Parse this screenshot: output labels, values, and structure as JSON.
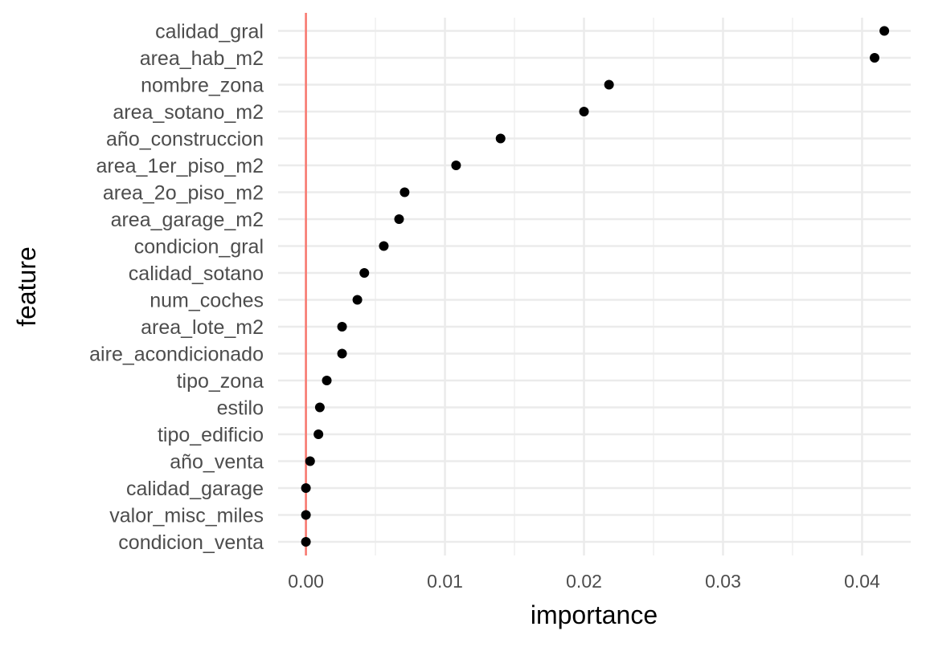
{
  "chart_data": {
    "type": "scatter",
    "xlabel": "importance",
    "ylabel": "feature",
    "xlim": [
      -0.002,
      0.0435
    ],
    "x_ticks": [
      0.0,
      0.01,
      0.02,
      0.03,
      0.04
    ],
    "x_tick_labels": [
      "0.00",
      "0.01",
      "0.02",
      "0.03",
      "0.04"
    ],
    "grid": true,
    "reference_line": {
      "x": 0.0,
      "color": "#f8766d"
    },
    "point_color": "#000000",
    "features": [
      "calidad_gral",
      "area_hab_m2",
      "nombre_zona",
      "area_sotano_m2",
      "año_construccion",
      "area_1er_piso_m2",
      "area_2o_piso_m2",
      "area_garage_m2",
      "condicion_gral",
      "calidad_sotano",
      "num_coches",
      "area_lote_m2",
      "aire_acondicionado",
      "tipo_zona",
      "estilo",
      "tipo_edificio",
      "año_venta",
      "calidad_garage",
      "valor_misc_miles",
      "condicion_venta"
    ],
    "importance": [
      0.0416,
      0.0409,
      0.0218,
      0.02,
      0.014,
      0.0108,
      0.0071,
      0.0067,
      0.0056,
      0.0042,
      0.0037,
      0.0026,
      0.0026,
      0.0015,
      0.001,
      0.0009,
      0.0003,
      0.0,
      0.0,
      0.0
    ]
  }
}
